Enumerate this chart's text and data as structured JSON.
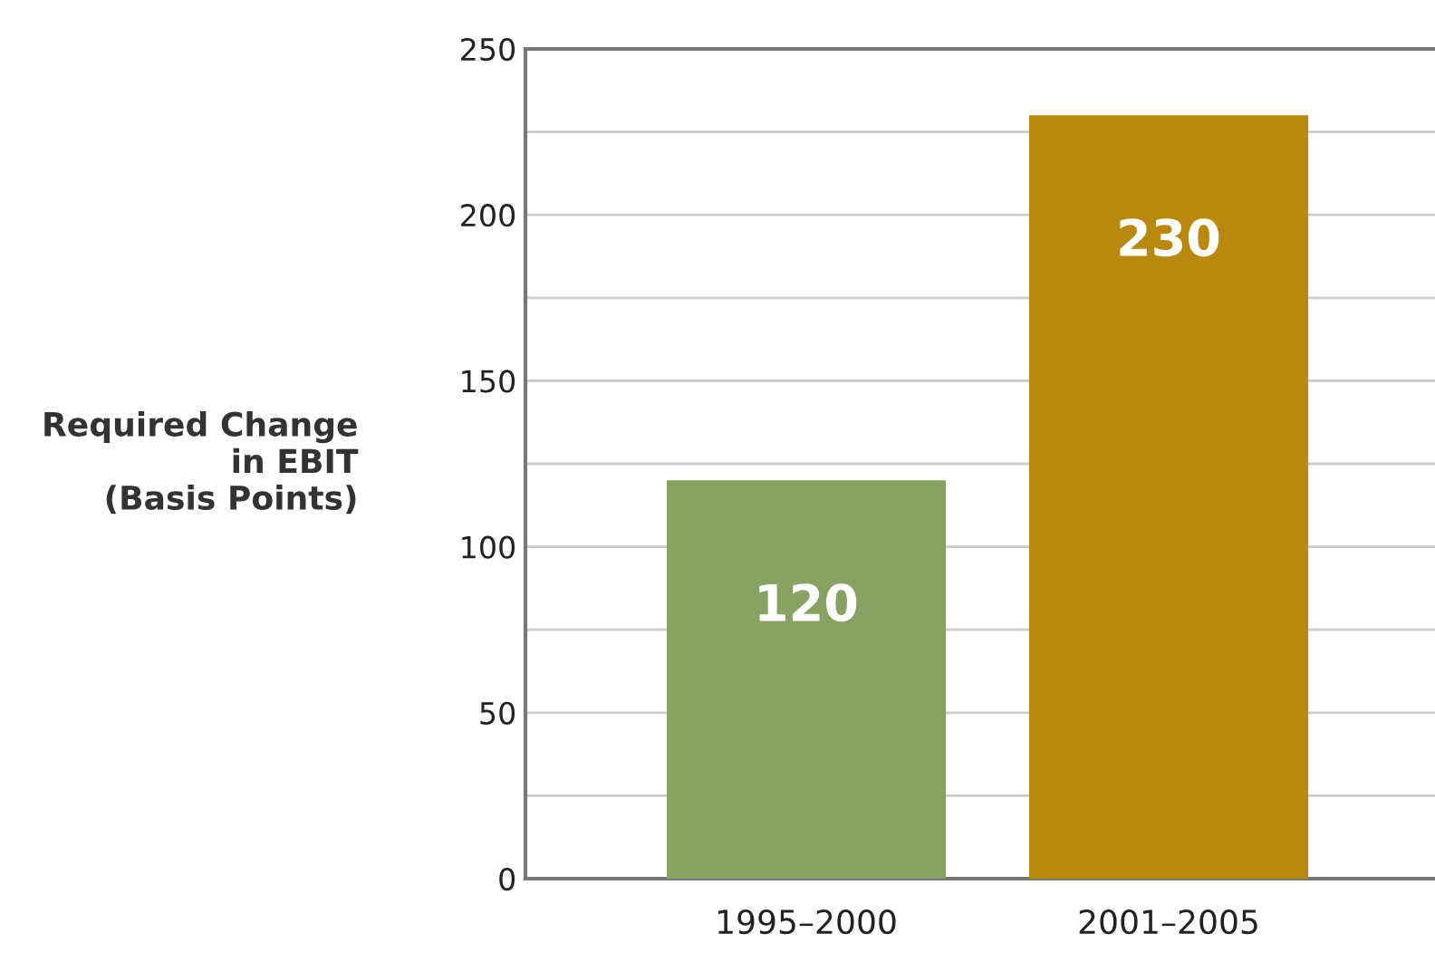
{
  "chart_data": {
    "type": "bar",
    "ylabel": "Required Change\nin EBIT\n(Basis Points)",
    "categories": [
      "1995–2000",
      "2001–2005"
    ],
    "values": [
      120,
      230
    ],
    "colors": [
      "#87a263",
      "#b9880f"
    ],
    "data_labels": true,
    "ylim": [
      0,
      250
    ],
    "yticks": [
      0,
      {
        "value": 25,
        "label": null
      },
      50,
      {
        "value": 75,
        "label": null
      },
      100,
      {
        "value": 125,
        "label": null
      },
      150,
      {
        "value": 175,
        "label": null
      },
      200,
      {
        "value": 225,
        "label": null
      },
      250
    ],
    "grid": "y"
  }
}
